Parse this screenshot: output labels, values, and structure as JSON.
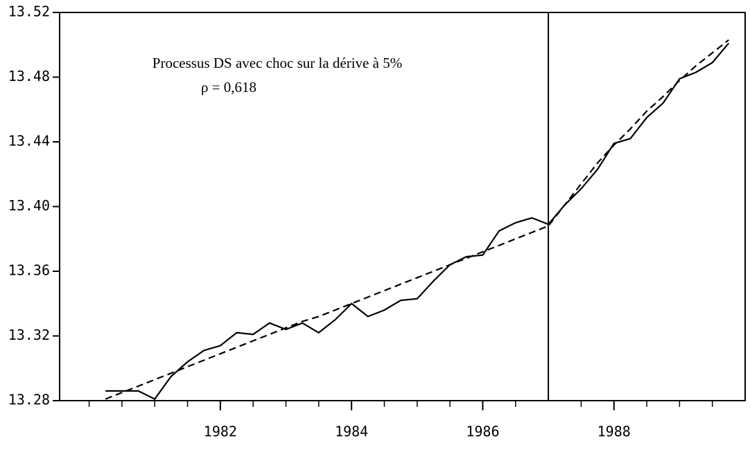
{
  "chart_data": {
    "type": "line",
    "annotations": [
      "Processus DS avec choc sur la dérive à 5%",
      "ρ = 0,618"
    ],
    "x": [
      1980.25,
      1980.5,
      1980.75,
      1981,
      1981.25,
      1981.5,
      1981.75,
      1982,
      1982.25,
      1982.5,
      1982.75,
      1983,
      1983.25,
      1983.5,
      1983.75,
      1984,
      1984.25,
      1984.5,
      1984.75,
      1985,
      1985.25,
      1985.5,
      1985.75,
      1986,
      1986.25,
      1986.5,
      1986.75,
      1987,
      1987.25,
      1987.5,
      1987.75,
      1988,
      1988.25,
      1988.5,
      1988.75,
      1989,
      1989.25,
      1989.5,
      1989.75
    ],
    "series": [
      {
        "color": "#000000",
        "dash": false,
        "values": [
          13.286,
          13.286,
          13.286,
          13.281,
          13.295,
          13.304,
          13.311,
          13.314,
          13.322,
          13.321,
          13.328,
          13.324,
          13.328,
          13.322,
          13.33,
          13.34,
          13.332,
          13.336,
          13.342,
          13.343,
          13.354,
          13.364,
          13.369,
          13.37,
          13.385,
          13.39,
          13.393,
          13.389,
          13.401,
          13.411,
          13.423,
          13.439,
          13.442,
          13.455,
          13.464,
          13.479,
          13.483,
          13.489,
          13.501
        ]
      },
      {
        "color": "#000000",
        "dash": true,
        "values": [
          13.281,
          13.285,
          13.289,
          13.293,
          13.297,
          13.301,
          13.305,
          13.309,
          13.313,
          13.317,
          13.321,
          13.325,
          13.329,
          13.332,
          13.336,
          13.34,
          13.344,
          13.348,
          13.352,
          13.356,
          13.36,
          13.364,
          13.368,
          13.372,
          13.376,
          13.38,
          13.384,
          13.388,
          13.401,
          13.414,
          13.427,
          13.438,
          13.448,
          13.459,
          13.468,
          13.478,
          13.487,
          13.495,
          13.503
        ]
      }
    ],
    "vline": 1987,
    "xlim": [
      1979.55,
      1990
    ],
    "xticks": [
      1982,
      1984,
      1986,
      1988
    ],
    "xminorticks": [
      1980,
      1980.5,
      1981,
      1981.5,
      1982.5,
      1983,
      1983.5,
      1984.5,
      1985,
      1985.5,
      1986.5,
      1987.5,
      1988.5,
      1989,
      1989.5
    ],
    "ylim": [
      13.28,
      13.52
    ],
    "yticks": [
      13.28,
      13.32,
      13.36,
      {
        "value": 13.4,
        "label": "13.40"
      },
      13.44,
      13.48,
      13.52
    ]
  }
}
